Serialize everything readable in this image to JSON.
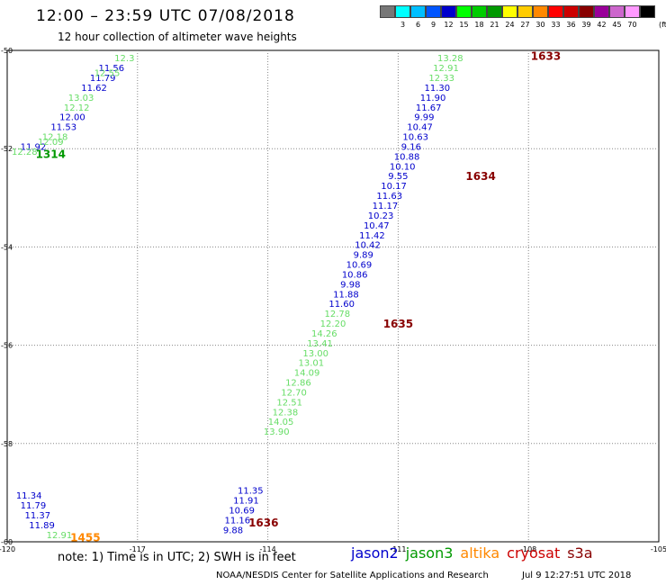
{
  "header": {
    "title": "12:00 – 23:59 UTC 07/08/2018",
    "subtitle": "12 hour collection of altimeter wave heights"
  },
  "color_scale": {
    "unit": "(ft)",
    "items": [
      {
        "label": "",
        "color": "#777777"
      },
      {
        "label": "3",
        "color": "#00ffff"
      },
      {
        "label": "6",
        "color": "#00bfff"
      },
      {
        "label": "9",
        "color": "#0055ff"
      },
      {
        "label": "12",
        "color": "#0000cc"
      },
      {
        "label": "15",
        "color": "#00ff00"
      },
      {
        "label": "18",
        "color": "#00cc00"
      },
      {
        "label": "21",
        "color": "#009900"
      },
      {
        "label": "24",
        "color": "#ffff00"
      },
      {
        "label": "27",
        "color": "#ffcc00"
      },
      {
        "label": "30",
        "color": "#ff8800"
      },
      {
        "label": "33",
        "color": "#ff0000"
      },
      {
        "label": "36",
        "color": "#cc0000"
      },
      {
        "label": "39",
        "color": "#880000"
      },
      {
        "label": "42",
        "color": "#990099"
      },
      {
        "label": "45",
        "color": "#cc66cc"
      },
      {
        "label": "70",
        "color": "#ff99ff"
      },
      {
        "label": "",
        "color": "#000000"
      }
    ]
  },
  "note": "note: 1) Time is in UTC; 2) SWH is in feet",
  "legend": [
    {
      "name": "jason2",
      "color": "#0000cc"
    },
    {
      "name": "jason3",
      "color": "#009900"
    },
    {
      "name": "altika",
      "color": "#ff8800"
    },
    {
      "name": "cryosat",
      "color": "#cc0000"
    },
    {
      "name": "s3a",
      "color": "#880000"
    }
  ],
  "footer": {
    "source": "NOAA/NESDIS Center for Satellite Applications and Research",
    "timestamp": "Jul  9 12:27:51 UTC 2018"
  },
  "colors": {
    "jason2": "#0000cc",
    "jason3_light": "#66dd66",
    "jason3_dark": "#009900",
    "altika": "#ff8800",
    "s3a": "#880000",
    "grid": "#888888"
  },
  "chart_data": {
    "type": "scatter",
    "xlabel": "",
    "ylabel": "",
    "xlim": [
      -120,
      -105
    ],
    "ylim": [
      -60,
      -50
    ],
    "x_ticks": [
      "-120",
      "-117",
      "-114",
      "-111",
      "-108",
      "-105"
    ],
    "y_ticks": [
      "-50",
      "-52",
      "-54",
      "-56",
      "-58",
      "-60"
    ],
    "series": [
      {
        "name": "jason2",
        "color": "#0000cc",
        "points": [
          {
            "x": -110.1,
            "y": -50.75,
            "label": "11.30"
          },
          {
            "x": -110.2,
            "y": -50.95,
            "label": "11.90"
          },
          {
            "x": -110.3,
            "y": -51.15,
            "label": "11.67"
          },
          {
            "x": -110.4,
            "y": -51.35,
            "label": "9.99"
          },
          {
            "x": -110.5,
            "y": -51.55,
            "label": "10.47"
          },
          {
            "x": -110.6,
            "y": -51.75,
            "label": "10.63"
          },
          {
            "x": -110.7,
            "y": -51.95,
            "label": "9.16"
          },
          {
            "x": -110.8,
            "y": -52.15,
            "label": "10.88"
          },
          {
            "x": -110.9,
            "y": -52.35,
            "label": "10.10"
          },
          {
            "x": -111.0,
            "y": -52.55,
            "label": "9.55"
          },
          {
            "x": -111.1,
            "y": -52.75,
            "label": "10.17"
          },
          {
            "x": -111.2,
            "y": -52.95,
            "label": "11.63"
          },
          {
            "x": -111.3,
            "y": -53.15,
            "label": "11.17"
          },
          {
            "x": -111.4,
            "y": -53.35,
            "label": "10.23"
          },
          {
            "x": -111.5,
            "y": -53.55,
            "label": "10.47"
          },
          {
            "x": -111.6,
            "y": -53.75,
            "label": "11.42"
          },
          {
            "x": -111.7,
            "y": -53.95,
            "label": "10.42"
          },
          {
            "x": -111.8,
            "y": -54.15,
            "label": "9.89"
          },
          {
            "x": -111.9,
            "y": -54.35,
            "label": "10.69"
          },
          {
            "x": -112.0,
            "y": -54.55,
            "label": "10.86"
          },
          {
            "x": -112.1,
            "y": -54.75,
            "label": "9.98"
          },
          {
            "x": -112.2,
            "y": -54.95,
            "label": "11.88"
          },
          {
            "x": -112.3,
            "y": -55.15,
            "label": "11.60"
          },
          {
            "x": -114.4,
            "y": -58.95,
            "label": "11.35"
          },
          {
            "x": -114.5,
            "y": -59.15,
            "label": "11.91"
          },
          {
            "x": -114.6,
            "y": -59.35,
            "label": "10.69"
          },
          {
            "x": -114.7,
            "y": -59.55,
            "label": "11.16"
          },
          {
            "x": -114.8,
            "y": -59.75,
            "label": "9.88"
          },
          {
            "x": -117.6,
            "y": -50.35,
            "label": "11.56"
          },
          {
            "x": -117.8,
            "y": -50.55,
            "label": "11.79"
          },
          {
            "x": -118.0,
            "y": -50.75,
            "label": "11.62"
          },
          {
            "x": -118.5,
            "y": -51.35,
            "label": "12.00"
          },
          {
            "x": -118.7,
            "y": -51.55,
            "label": "11.53"
          },
          {
            "x": -119.4,
            "y": -51.95,
            "label": "11.92"
          },
          {
            "x": -119.5,
            "y": -59.05,
            "label": "11.34"
          },
          {
            "x": -119.4,
            "y": -59.25,
            "label": "11.79"
          },
          {
            "x": -119.3,
            "y": -59.45,
            "label": "11.37"
          },
          {
            "x": -119.2,
            "y": -59.65,
            "label": "11.89"
          }
        ]
      },
      {
        "name": "jason3",
        "color": "#66dd66",
        "points": [
          {
            "x": -109.8,
            "y": -50.15,
            "label": "13.28"
          },
          {
            "x": -109.9,
            "y": -50.35,
            "label": "12.91"
          },
          {
            "x": -110.0,
            "y": -50.55,
            "label": "12.33"
          },
          {
            "x": -112.4,
            "y": -55.35,
            "label": "12.78"
          },
          {
            "x": -112.5,
            "y": -55.55,
            "label": "12.20"
          },
          {
            "x": -112.7,
            "y": -55.75,
            "label": "14.26"
          },
          {
            "x": -112.8,
            "y": -55.95,
            "label": "13.41"
          },
          {
            "x": -112.9,
            "y": -56.15,
            "label": "13.00"
          },
          {
            "x": -113.0,
            "y": -56.35,
            "label": "13.01"
          },
          {
            "x": -113.1,
            "y": -56.55,
            "label": "14.09"
          },
          {
            "x": -113.3,
            "y": -56.75,
            "label": "12.86"
          },
          {
            "x": -113.4,
            "y": -56.95,
            "label": "12.70"
          },
          {
            "x": -113.5,
            "y": -57.15,
            "label": "12.51"
          },
          {
            "x": -113.6,
            "y": -57.35,
            "label": "12.38"
          },
          {
            "x": -113.7,
            "y": -57.55,
            "label": "14.05"
          },
          {
            "x": -113.8,
            "y": -57.75,
            "label": "13.90"
          },
          {
            "x": -117.3,
            "y": -50.15,
            "label": "12.3"
          },
          {
            "x": -117.7,
            "y": -50.45,
            "label": "12.55"
          },
          {
            "x": -118.3,
            "y": -50.95,
            "label": "13.03"
          },
          {
            "x": -118.4,
            "y": -51.15,
            "label": "12.12"
          },
          {
            "x": -118.9,
            "y": -51.75,
            "label": "12.18"
          },
          {
            "x": -119.0,
            "y": -51.85,
            "label": "12.09"
          },
          {
            "x": -119.6,
            "y": -52.05,
            "label": "12.28"
          },
          {
            "x": -118.8,
            "y": -59.85,
            "label": "12.91"
          }
        ]
      }
    ],
    "annotations": [
      {
        "text": "1633",
        "x": -107.6,
        "y": -50.1,
        "color": "#880000"
      },
      {
        "text": "1634",
        "x": -109.1,
        "y": -52.55,
        "color": "#880000"
      },
      {
        "text": "1635",
        "x": -111.0,
        "y": -55.55,
        "color": "#880000"
      },
      {
        "text": "1636",
        "x": -114.1,
        "y": -59.6,
        "color": "#880000"
      },
      {
        "text": "1314",
        "x": -119.0,
        "y": -52.1,
        "color": "#009900"
      },
      {
        "text": "1455",
        "x": -118.2,
        "y": -59.9,
        "color": "#ff8800"
      }
    ]
  }
}
